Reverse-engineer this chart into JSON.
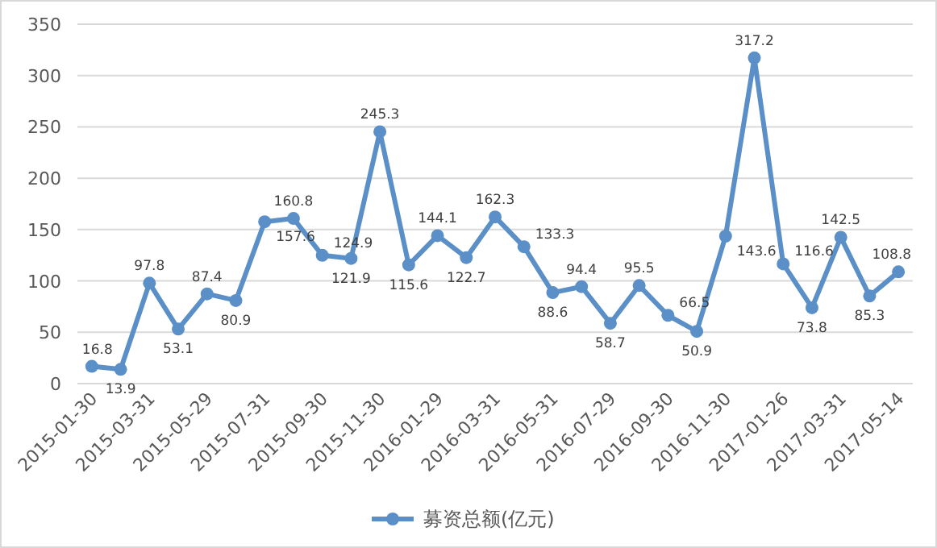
{
  "chart_data": {
    "type": "line",
    "categories": [
      "2015-01-30",
      null,
      "2015-03-31",
      null,
      "2015-05-29",
      null,
      "2015-07-31",
      null,
      "2015-09-30",
      null,
      "2015-11-30",
      null,
      "2016-01-29",
      null,
      "2016-03-31",
      null,
      "2016-05-31",
      null,
      "2016-07-29",
      null,
      "2016-09-30",
      null,
      "2016-11-30",
      null,
      "2017-01-26",
      null,
      "2017-03-31",
      null,
      "2017-05-14"
    ],
    "series": [
      {
        "name": "募资总额(亿元)",
        "color": "#5b8fc7",
        "values": [
          16.8,
          13.9,
          97.8,
          53.1,
          87.4,
          80.9,
          157.6,
          160.8,
          124.9,
          121.9,
          245.3,
          115.6,
          144.1,
          122.7,
          162.3,
          133.3,
          88.6,
          94.4,
          58.7,
          95.5,
          66.5,
          50.9,
          143.6,
          317.2,
          116.6,
          73.8,
          142.5,
          85.3,
          108.8
        ]
      }
    ],
    "ylim": [
      0,
      350
    ],
    "yticks": [
      0,
      50,
      100,
      150,
      200,
      250,
      300,
      350
    ],
    "grid": "y",
    "legend": "bottom",
    "marker": "circle",
    "line_style": "solid",
    "data_labels": true
  }
}
